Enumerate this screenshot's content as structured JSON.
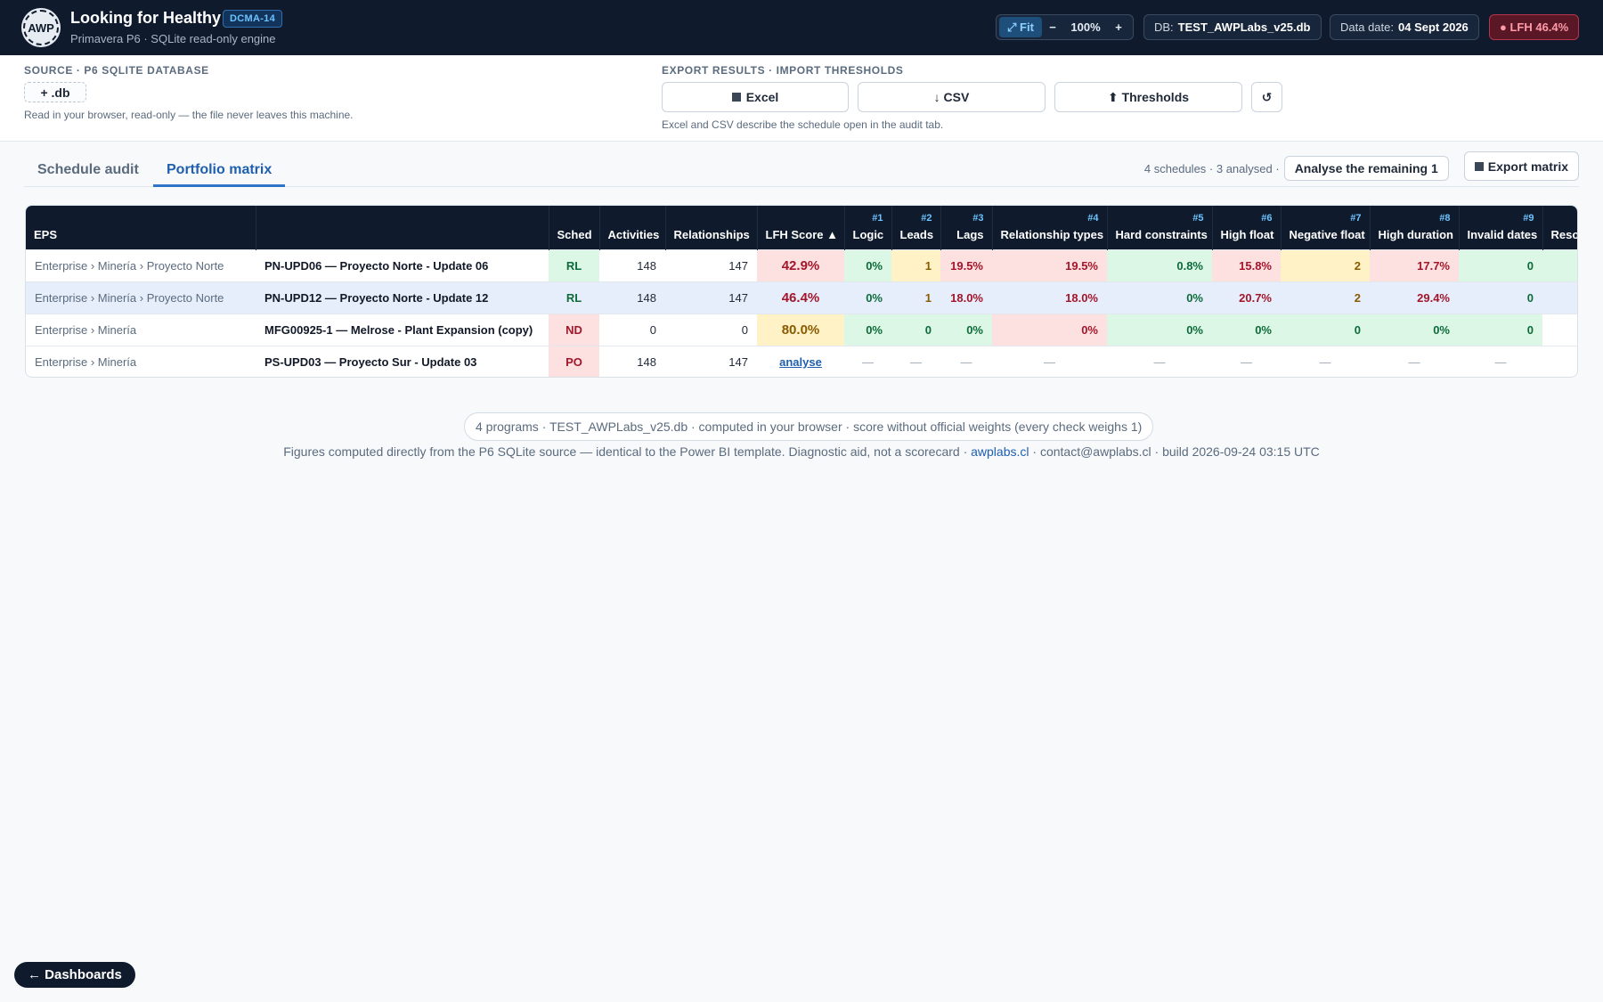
{
  "header": {
    "logo_text": "AWP",
    "title": "Looking for Healthy",
    "badge": "DCMA-14",
    "subtitle": "Primavera P6 · SQLite read-only engine",
    "zoom": {
      "fit_label": "⤢ Fit",
      "minus": "−",
      "level": "100%",
      "plus": "+"
    },
    "db_label": "DB:",
    "db_value": "TEST_AWPLabs_v25.db",
    "data_date_label": "Data date:",
    "data_date_value": "04 Sept 2026",
    "lfh_label": "● LFH 46.4%"
  },
  "toolbar": {
    "source_label": "SOURCE · P6 SQLITE DATABASE",
    "db_button": "+ .db",
    "source_note": "Read in your browser, read-only — the file never leaves this machine.",
    "export_label": "EXPORT RESULTS · IMPORT THRESHOLDS",
    "excel": "Excel",
    "csv": "↓ CSV",
    "thresholds": "⬆ Thresholds",
    "reset": "↺",
    "export_note": "Excel and CSV describe the schedule open in the audit tab."
  },
  "tabs": {
    "items": [
      "Schedule audit",
      "Portfolio matrix"
    ],
    "active": 1,
    "summary": "4 schedules · 3 analysed ·",
    "analyse_button": "Analyse the remaining 1",
    "export_button": "Export matrix"
  },
  "table": {
    "columns": [
      {
        "num": "",
        "label": "EPS"
      },
      {
        "num": "",
        "label": ""
      },
      {
        "num": "",
        "label": "Sched"
      },
      {
        "num": "",
        "label": "Activities"
      },
      {
        "num": "",
        "label": "Relationships"
      },
      {
        "num": "",
        "label": "LFH Score ▲"
      },
      {
        "num": "#1",
        "label": "Logic"
      },
      {
        "num": "#2",
        "label": "Leads"
      },
      {
        "num": "#3",
        "label": "Lags"
      },
      {
        "num": "#4",
        "label": "Relationship types"
      },
      {
        "num": "#5",
        "label": "Hard constraints"
      },
      {
        "num": "#6",
        "label": "High float"
      },
      {
        "num": "#7",
        "label": "Negative float"
      },
      {
        "num": "#8",
        "label": "High duration"
      },
      {
        "num": "#9",
        "label": "Invalid dates"
      },
      {
        "num": "",
        "label": "Resources"
      }
    ],
    "rows": [
      {
        "eps": "Enterprise › Minería › Proyecto Norte",
        "name": "PN-UPD06 — Proyecto Norte - Update 06",
        "sched": "RL",
        "activities": "148",
        "relationships": "147",
        "score": "42.9%",
        "c1": "0%",
        "c2": "1",
        "c3": "19.5%",
        "c4": "19.5%",
        "c5": "0.8%",
        "c6": "15.8%",
        "c7": "2",
        "c8": "17.7%",
        "c9": "0",
        "c10": ""
      },
      {
        "eps": "Enterprise › Minería › Proyecto Norte",
        "name": "PN-UPD12 — Proyecto Norte - Update 12",
        "sched": "RL",
        "activities": "148",
        "relationships": "147",
        "score": "46.4%",
        "c1": "0%",
        "c2": "1",
        "c3": "18.0%",
        "c4": "18.0%",
        "c5": "0%",
        "c6": "20.7%",
        "c7": "2",
        "c8": "29.4%",
        "c9": "0",
        "c10": ""
      },
      {
        "eps": "Enterprise › Minería",
        "name": "MFG00925-1 — Melrose - Plant Expansion (copy)",
        "sched": "ND",
        "activities": "0",
        "relationships": "0",
        "score": "80.0%",
        "c1": "0%",
        "c2": "0",
        "c3": "0%",
        "c4": "0%",
        "c5": "0%",
        "c6": "0%",
        "c7": "0",
        "c8": "0%",
        "c9": "0",
        "c10": ""
      },
      {
        "eps": "Enterprise › Minería",
        "name": "PS-UPD03 — Proyecto Sur - Update 03",
        "sched": "PO",
        "activities": "148",
        "relationships": "147",
        "score": "analyse",
        "c1": "—",
        "c2": "—",
        "c3": "—",
        "c4": "—",
        "c5": "—",
        "c6": "—",
        "c7": "—",
        "c8": "—",
        "c9": "—",
        "c10": ""
      }
    ]
  },
  "footer": {
    "pill": "4 programs · TEST_AWPLabs_v25.db · computed in your browser · score without official weights (every check weighs 1)",
    "line_a": "Figures computed directly from the P6 SQLite source — identical to the Power BI template. Diagnostic aid, not a scorecard ·",
    "link": "awplabs.cl",
    "line_b": "· contact@awplabs.cl · build 2026-09-24 03:15 UTC",
    "dashboards_button": "← Dashboards"
  }
}
